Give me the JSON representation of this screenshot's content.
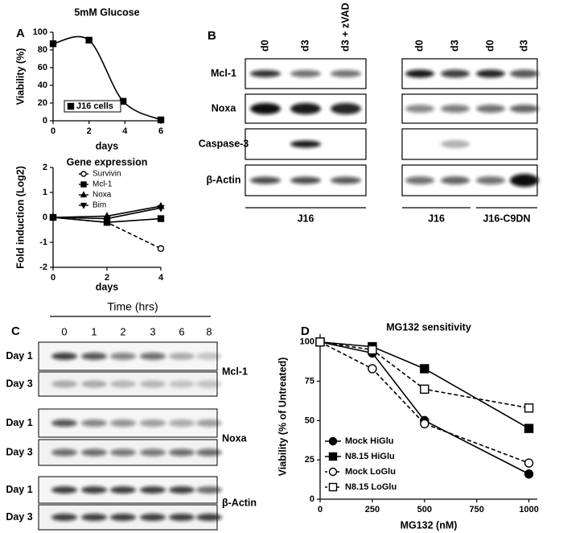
{
  "panel_labels": [
    "A",
    "B",
    "C",
    "D"
  ],
  "chart_data": [
    {
      "type": "line",
      "title": "5mM Glucose",
      "x_label": "days",
      "y_label": "Viability (%)",
      "smooth": true,
      "x": [
        0,
        2,
        3.9,
        6
      ],
      "series": [
        {
          "name": "J16 cells",
          "color": "#000000",
          "marker": "square",
          "filled": true,
          "dash": false,
          "values": [
            87,
            91,
            22,
            1
          ]
        }
      ],
      "legend": "box",
      "xlim": [
        0,
        6
      ],
      "ylim": [
        0,
        100
      ],
      "xticks": [
        0,
        2,
        4,
        6
      ],
      "yticks": [
        0,
        20,
        40,
        60,
        80,
        100
      ]
    },
    {
      "type": "line",
      "title": "Gene expression",
      "x_label": "days",
      "y_label": "Fold induction (Log2)",
      "smooth": false,
      "x": [
        0,
        2,
        4
      ],
      "series": [
        {
          "name": "Survivin",
          "color": "#000000",
          "marker": "circle",
          "filled": false,
          "dash": true,
          "values": [
            0,
            -0.2,
            -1.25
          ]
        },
        {
          "name": "Mcl-1",
          "color": "#000000",
          "marker": "square",
          "filled": true,
          "dash": false,
          "values": [
            0,
            -0.2,
            -0.05
          ]
        },
        {
          "name": "Noxa",
          "color": "#000000",
          "marker": "triangle-up",
          "filled": true,
          "dash": false,
          "values": [
            0,
            0.05,
            0.45
          ]
        },
        {
          "name": "Bim",
          "color": "#000000",
          "marker": "triangle-down",
          "filled": true,
          "dash": false,
          "values": [
            0,
            -0.05,
            0.38
          ]
        }
      ],
      "legend": "list",
      "xlim": [
        0,
        4
      ],
      "ylim": [
        -2,
        2
      ],
      "xticks": [
        0,
        2,
        4
      ],
      "yticks": [
        -2,
        -1,
        0,
        1,
        2
      ]
    },
    {
      "type": "line",
      "title": "MG132 sensitivity",
      "x_label": "MG132 (nM)",
      "y_label": "Viability (% of Untreated)",
      "smooth": false,
      "x": [
        0,
        250,
        500,
        1000
      ],
      "series": [
        {
          "name": "Mock HiGlu",
          "color": "#000000",
          "marker": "circle",
          "filled": true,
          "dash": false,
          "values": [
            100,
            93,
            50,
            16
          ]
        },
        {
          "name": "N8.15 HiGlu",
          "color": "#000000",
          "marker": "square",
          "filled": true,
          "dash": false,
          "values": [
            100,
            97,
            83,
            45
          ]
        },
        {
          "name": "Mock LoGlu",
          "color": "#000000",
          "marker": "circle",
          "filled": false,
          "dash": true,
          "values": [
            100,
            83,
            48,
            23
          ]
        },
        {
          "name": "N8.15 LoGlu",
          "color": "#000000",
          "marker": "square",
          "filled": false,
          "dash": true,
          "values": [
            100,
            95,
            70,
            58
          ]
        }
      ],
      "legend": "list",
      "xlim": [
        0,
        1040
      ],
      "ylim": [
        0,
        105
      ],
      "xticks": [
        0,
        250,
        500,
        750,
        1000
      ],
      "yticks": [
        0,
        25,
        50,
        75,
        100
      ]
    }
  ],
  "blots_b": {
    "lanes_left": [
      "d0",
      "d3",
      "d3 + zVAD"
    ],
    "lanes_right": [
      "d0",
      "d3",
      "d0",
      "d3"
    ],
    "rows": [
      "Mcl-1",
      "Noxa",
      "Caspase-3",
      "β-Actin"
    ],
    "groups": [
      "J16",
      "J16",
      "J16-C9DN"
    ]
  },
  "blots_c": {
    "title": "Time (hrs)",
    "lanes": [
      "0",
      "1",
      "2",
      "3",
      "6",
      "8"
    ],
    "days": [
      "Day 1",
      "Day 3",
      "Day 1",
      "Day 3",
      "Day 1",
      "Day 3"
    ],
    "proteins": [
      "Mcl-1",
      "Noxa",
      "β-Actin"
    ]
  }
}
